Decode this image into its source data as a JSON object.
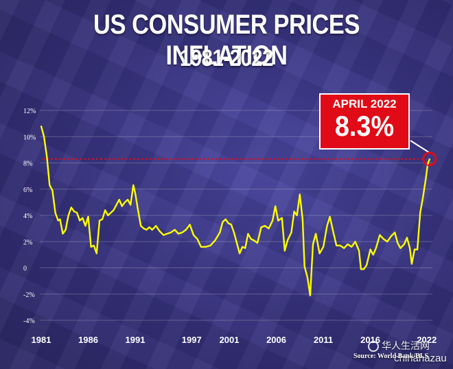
{
  "title": "US CONSUMER PRICES INFLATION",
  "subtitle": "1981-2022",
  "callout": {
    "label": "APRIL 2022",
    "value": "8.3%"
  },
  "source": "Source: World Bank/BLS",
  "watermark": {
    "line1": "华人生活网",
    "line2": "chinahazau"
  },
  "colors": {
    "line": "#ffff00",
    "callout_bg": "#e00b16",
    "reference": "#e00b16",
    "grid": "#ffffff"
  },
  "chart_data": {
    "type": "line",
    "title": "US CONSUMER PRICES INFLATION",
    "subtitle": "1981-2022",
    "xlabel": "",
    "ylabel": "",
    "xlim": [
      1981,
      2022.6
    ],
    "ylim": [
      -4,
      12
    ],
    "grid": true,
    "y_ticks": [
      12,
      10,
      8,
      6,
      4,
      2,
      0,
      -2,
      -4
    ],
    "y_tick_labels": [
      "12%",
      "10%",
      "8%",
      "6%",
      "4%",
      "2%",
      "0",
      "-2%",
      "-4%"
    ],
    "x_ticks": [
      1981,
      1986,
      1991,
      1997,
      2001,
      2006,
      2011,
      2016,
      2022
    ],
    "x_tick_labels": [
      "1981",
      "1986",
      "1991",
      "1997",
      "2001",
      "2006",
      "2011",
      "2016",
      "2022"
    ],
    "reference_line": {
      "y": 8.3,
      "style": "dotted"
    },
    "highlight_point": {
      "x": 2022.3,
      "y": 8.3,
      "label": "APRIL 2022",
      "value_label": "8.3%"
    },
    "series": [
      {
        "x": [
          1981.0,
          1981.3,
          1981.6,
          1981.9,
          1982.2,
          1982.5,
          1982.8,
          1983.0,
          1983.3,
          1983.6,
          1983.9,
          1984.2,
          1984.5,
          1984.8,
          1985.1,
          1985.4,
          1985.7,
          1986.0,
          1986.3,
          1986.6,
          1986.9,
          1987.2,
          1987.5,
          1987.8,
          1988.1,
          1988.4,
          1988.7,
          1989.0,
          1989.3,
          1989.6,
          1989.9,
          1990.2,
          1990.5,
          1990.8,
          1991.0,
          1991.3,
          1991.6,
          1991.9,
          1992.2,
          1992.5,
          1992.8,
          1993.2,
          1993.6,
          1994.0,
          1994.4,
          1994.8,
          1995.2,
          1995.6,
          1996.0,
          1996.4,
          1996.8,
          1997.2,
          1997.6,
          1998.0,
          1998.5,
          1999.0,
          1999.5,
          2000.0,
          2000.3,
          2000.6,
          2000.9,
          2001.2,
          2001.5,
          2001.8,
          2002.1,
          2002.4,
          2002.7,
          2003.0,
          2003.3,
          2003.6,
          2004.0,
          2004.4,
          2004.8,
          2005.2,
          2005.6,
          2005.9,
          2006.2,
          2006.6,
          2006.9,
          2007.2,
          2007.6,
          2007.9,
          2008.2,
          2008.5,
          2008.8,
          2009.0,
          2009.3,
          2009.6,
          2009.9,
          2010.2,
          2010.6,
          2011.0,
          2011.4,
          2011.7,
          2012.0,
          2012.4,
          2012.8,
          2013.2,
          2013.6,
          2014.0,
          2014.4,
          2014.8,
          2015.0,
          2015.3,
          2015.6,
          2016.0,
          2016.3,
          2016.6,
          2017.0,
          2017.4,
          2017.8,
          2018.2,
          2018.6,
          2018.9,
          2019.2,
          2019.6,
          2019.9,
          2020.2,
          2020.4,
          2020.7,
          2021.0,
          2021.3,
          2021.6,
          2021.9,
          2022.1,
          2022.3
        ],
        "values": [
          10.8,
          10.0,
          8.5,
          6.3,
          5.9,
          4.2,
          3.6,
          3.7,
          2.6,
          2.9,
          4.0,
          4.6,
          4.3,
          4.2,
          3.6,
          3.8,
          3.2,
          3.9,
          1.6,
          1.7,
          1.1,
          3.6,
          3.7,
          4.4,
          4.0,
          4.2,
          4.4,
          4.8,
          5.2,
          4.7,
          5.0,
          5.2,
          4.8,
          6.3,
          5.7,
          4.4,
          3.2,
          3.0,
          2.9,
          3.1,
          2.9,
          3.2,
          2.8,
          2.5,
          2.6,
          2.7,
          2.9,
          2.6,
          2.7,
          2.9,
          3.3,
          2.5,
          2.2,
          1.6,
          1.6,
          1.7,
          2.1,
          2.7,
          3.5,
          3.7,
          3.4,
          3.3,
          2.7,
          1.9,
          1.1,
          1.6,
          1.5,
          2.6,
          2.2,
          2.1,
          1.9,
          3.1,
          3.2,
          3.0,
          3.6,
          4.7,
          3.6,
          3.8,
          1.3,
          2.1,
          2.7,
          4.3,
          4.0,
          5.6,
          3.7,
          0.1,
          -0.7,
          -2.1,
          1.8,
          2.6,
          1.1,
          1.6,
          3.2,
          3.9,
          2.9,
          1.7,
          1.7,
          1.5,
          1.8,
          1.6,
          2.0,
          1.3,
          -0.1,
          -0.1,
          0.2,
          1.4,
          1.0,
          1.5,
          2.5,
          2.2,
          2.0,
          2.4,
          2.7,
          1.9,
          1.5,
          1.8,
          2.3,
          1.5,
          0.3,
          1.4,
          1.4,
          4.2,
          5.4,
          6.8,
          7.9,
          8.3
        ]
      }
    ]
  }
}
